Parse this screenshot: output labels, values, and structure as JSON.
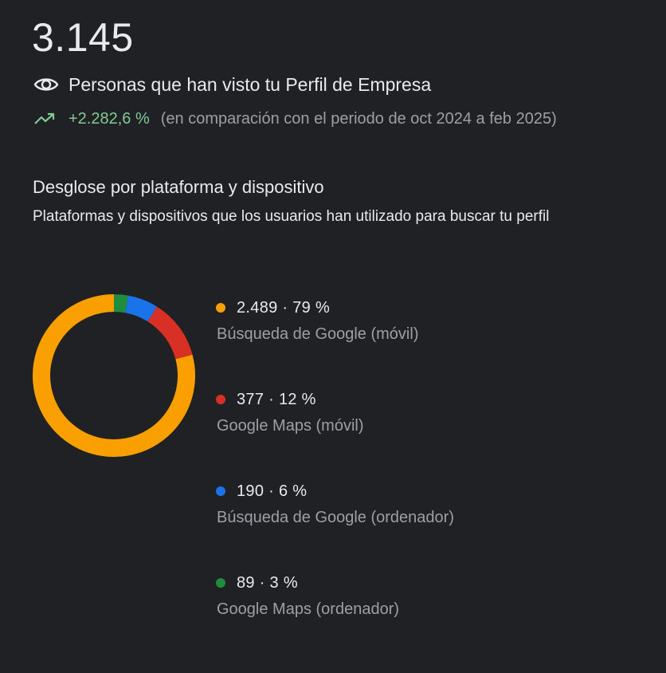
{
  "summary": {
    "total": "3.145",
    "metric_label": "Personas que han visto tu Perfil de Empresa",
    "metric_icon": "eye-icon",
    "trend_icon": "trending-up-icon",
    "trend_value": "+2.282,6 %",
    "trend_comparison": "(en comparación con el periodo de oct 2024 a feb 2025)"
  },
  "breakdown": {
    "title": "Desglose por plataforma y dispositivo",
    "subtitle": "Plataformas y dispositivos que los usuarios han utilizado para buscar tu perfil"
  },
  "colors": {
    "background": "#202124",
    "trend_positive": "#81c995",
    "search_mobile": "#f9a000",
    "maps_mobile": "#d93025",
    "search_desktop": "#1a73e8",
    "maps_desktop": "#1e8e3e"
  },
  "chart_data": {
    "type": "pie",
    "donut": true,
    "categories": [
      "Búsqueda de Google (móvil)",
      "Google Maps (móvil)",
      "Búsqueda de Google (ordenador)",
      "Google Maps (ordenador)"
    ],
    "values": [
      2489,
      377,
      190,
      89
    ],
    "percent_labels": [
      "79 %",
      "12 %",
      "6 %",
      "3 %"
    ],
    "value_labels": [
      "2.489",
      "377",
      "190",
      "89"
    ],
    "colors": [
      "#f9a000",
      "#d93025",
      "#1a73e8",
      "#1e8e3e"
    ]
  }
}
